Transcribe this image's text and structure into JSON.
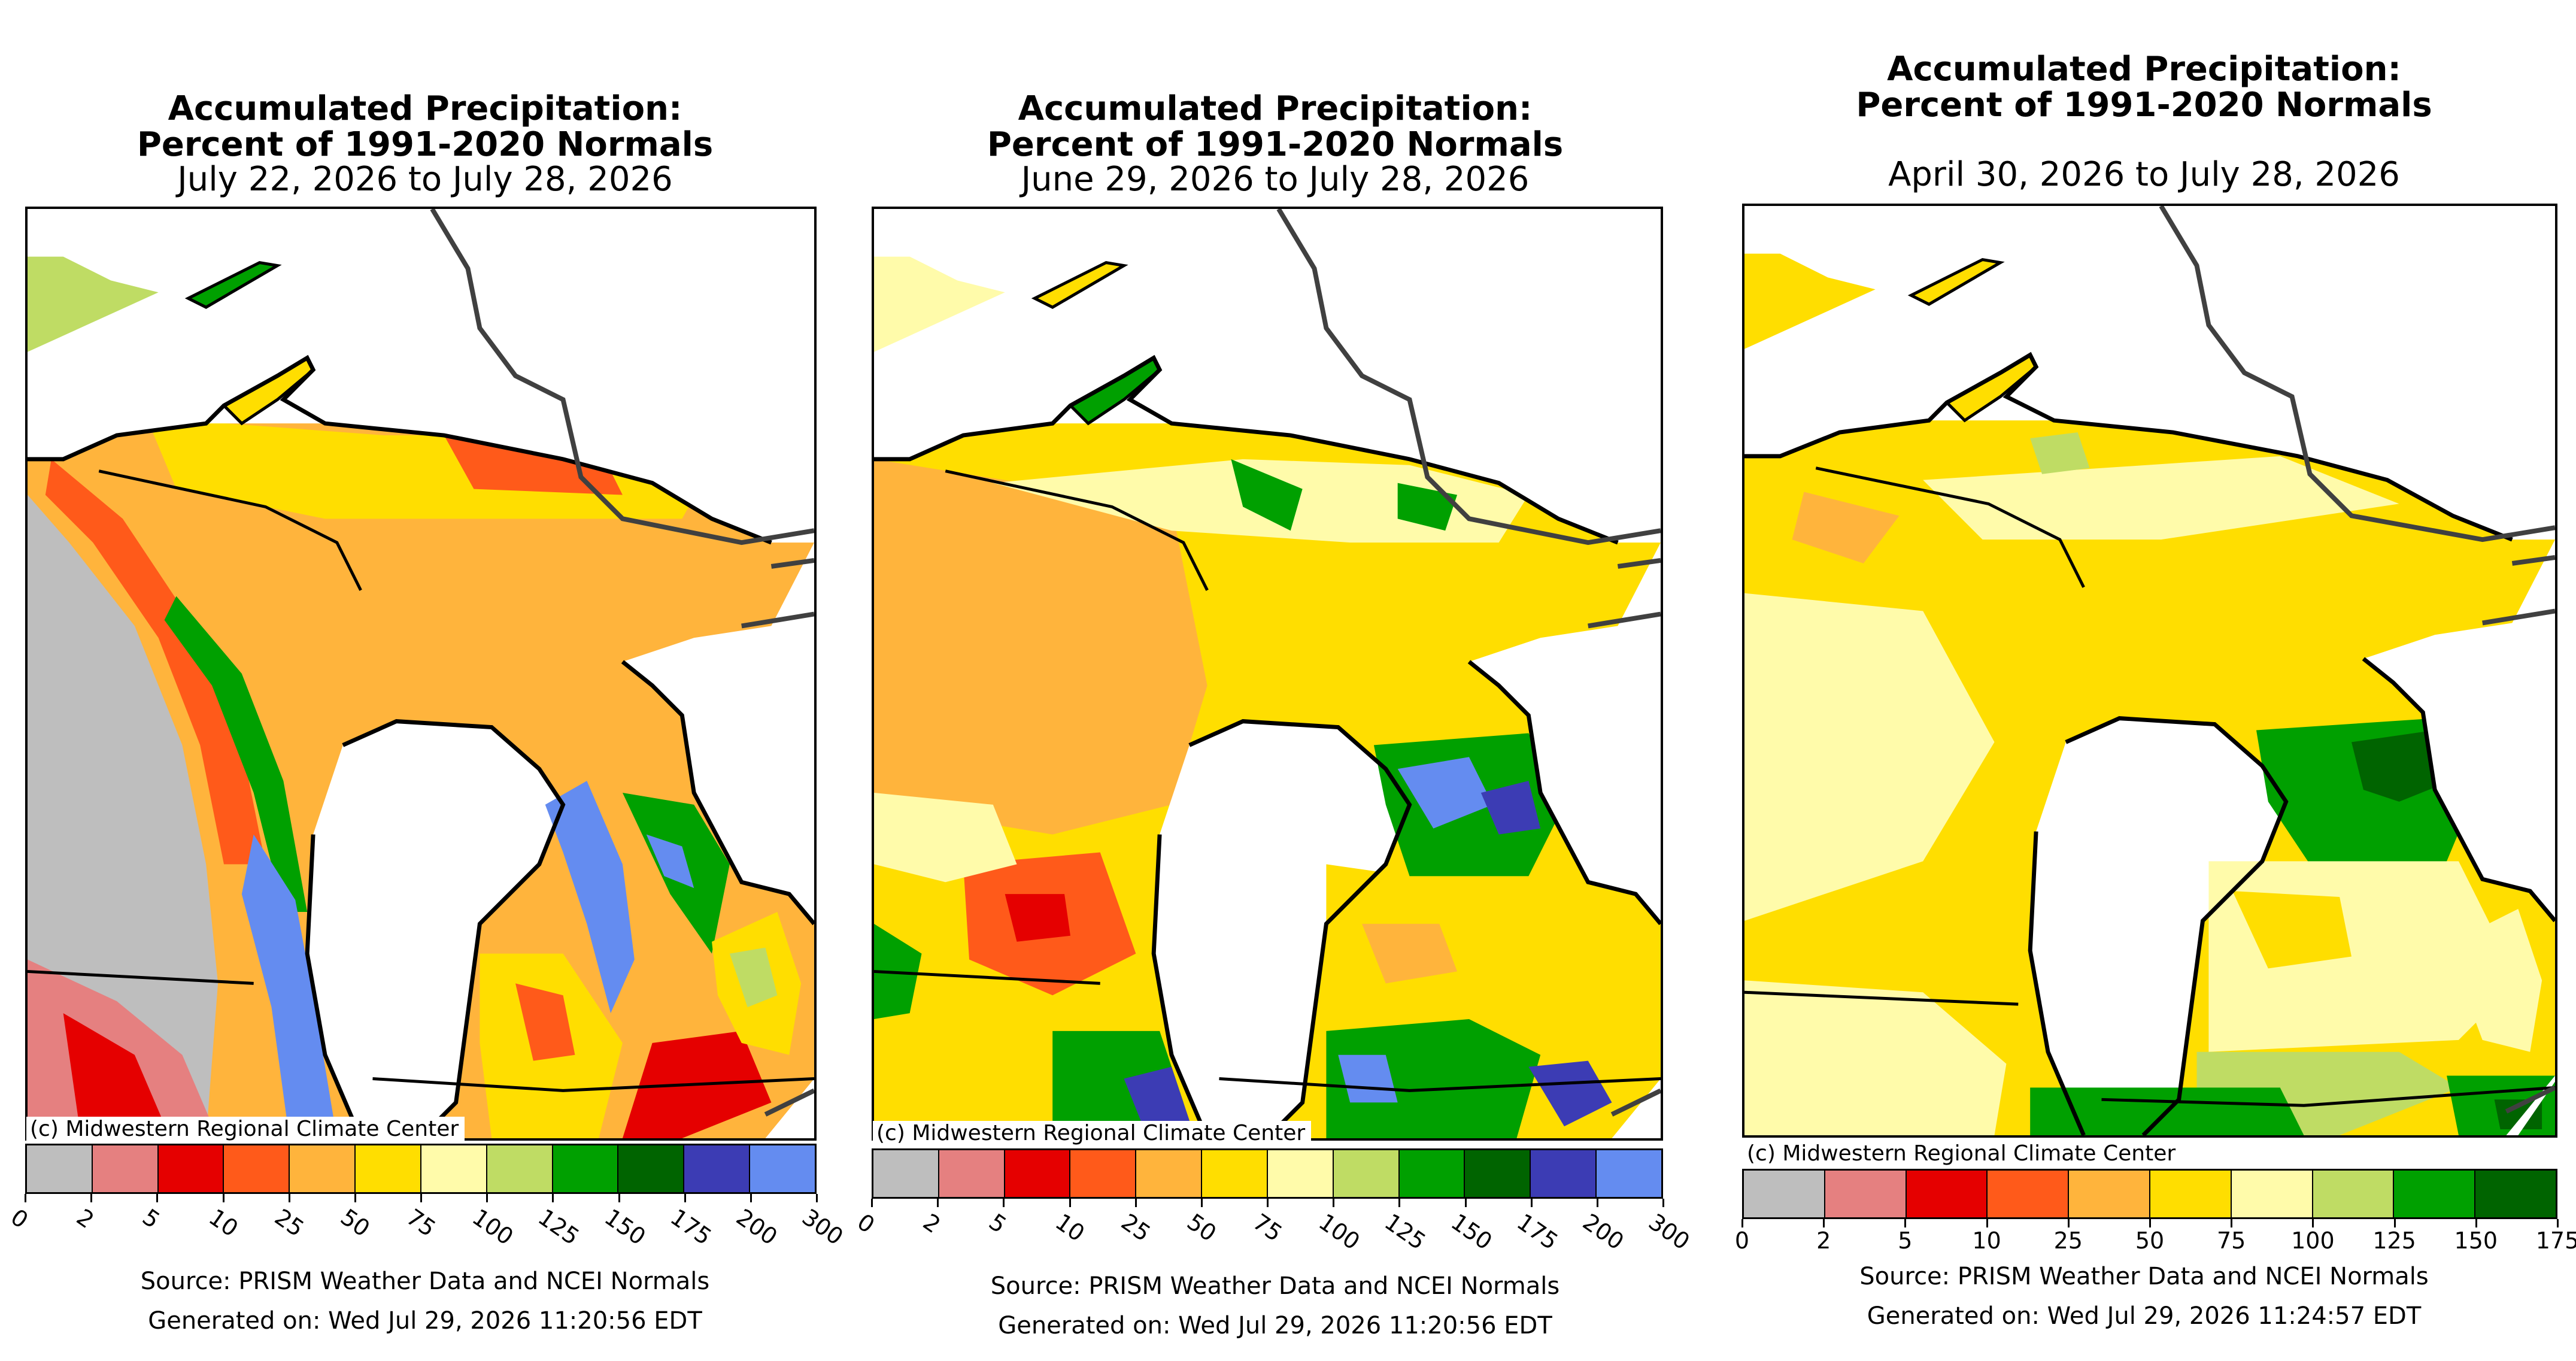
{
  "colors": {
    "0-2": "#bebebe",
    "2-5": "#e58080",
    "5-10": "#e50000",
    "10-25": "#ff5a1a",
    "25-50": "#ffb43c",
    "50-75": "#ffde00",
    "75-100": "#fffbaa",
    "100-125": "#bfdc64",
    "125-150": "#00a000",
    "150-175": "#006400",
    "175-200": "#3c3cb4",
    "200-300": "#648cf0",
    "outline": "#000000",
    "border": "#404040",
    "county": "#555555"
  },
  "panels": [
    {
      "title_line1": "Accumulated Precipitation:",
      "title_line2": "Percent of 1991-2020 Normals",
      "date_range": "July 22, 2026 to July 28, 2026",
      "credit": "(c) Midwestern Regional Climate Center",
      "legend_ticks": [
        "0",
        "2",
        "5",
        "10",
        "25",
        "50",
        "75",
        "100",
        "125",
        "150",
        "175",
        "200",
        "300"
      ],
      "source": "Source: PRISM Weather Data and NCEI Normals",
      "generated": "Generated on: Wed Jul 29, 2026 11:20:56 EDT",
      "dominant_categories": [
        "10-25",
        "25-50",
        "0-2",
        "200-300"
      ]
    },
    {
      "title_line1": "Accumulated Precipitation:",
      "title_line2": "Percent of 1991-2020 Normals",
      "date_range": "June 29, 2026 to July 28, 2026",
      "credit": "(c) Midwestern Regional Climate Center",
      "legend_ticks": [
        "0",
        "2",
        "5",
        "10",
        "25",
        "50",
        "75",
        "100",
        "125",
        "150",
        "175",
        "200",
        "300"
      ],
      "source": "Source: PRISM Weather Data and NCEI Normals",
      "generated": "Generated on: Wed Jul 29, 2026 11:20:56 EDT",
      "dominant_categories": [
        "50-75",
        "25-50",
        "125-150",
        "200-300"
      ]
    },
    {
      "title_line1": "Accumulated Precipitation:",
      "title_line2": "Percent of 1991-2020 Normals",
      "date_range": "April 30, 2026 to July 28, 2026",
      "credit": "(c) Midwestern Regional Climate Center",
      "legend_ticks": [
        "0",
        "2",
        "5",
        "10",
        "25",
        "50",
        "75",
        "100",
        "125",
        "150",
        "175"
      ],
      "source": "Source: PRISM Weather Data and NCEI Normals",
      "generated": "Generated on: Wed Jul 29, 2026 11:24:57 EDT",
      "dominant_categories": [
        "50-75",
        "75-100",
        "125-150",
        "150-175"
      ]
    }
  ]
}
